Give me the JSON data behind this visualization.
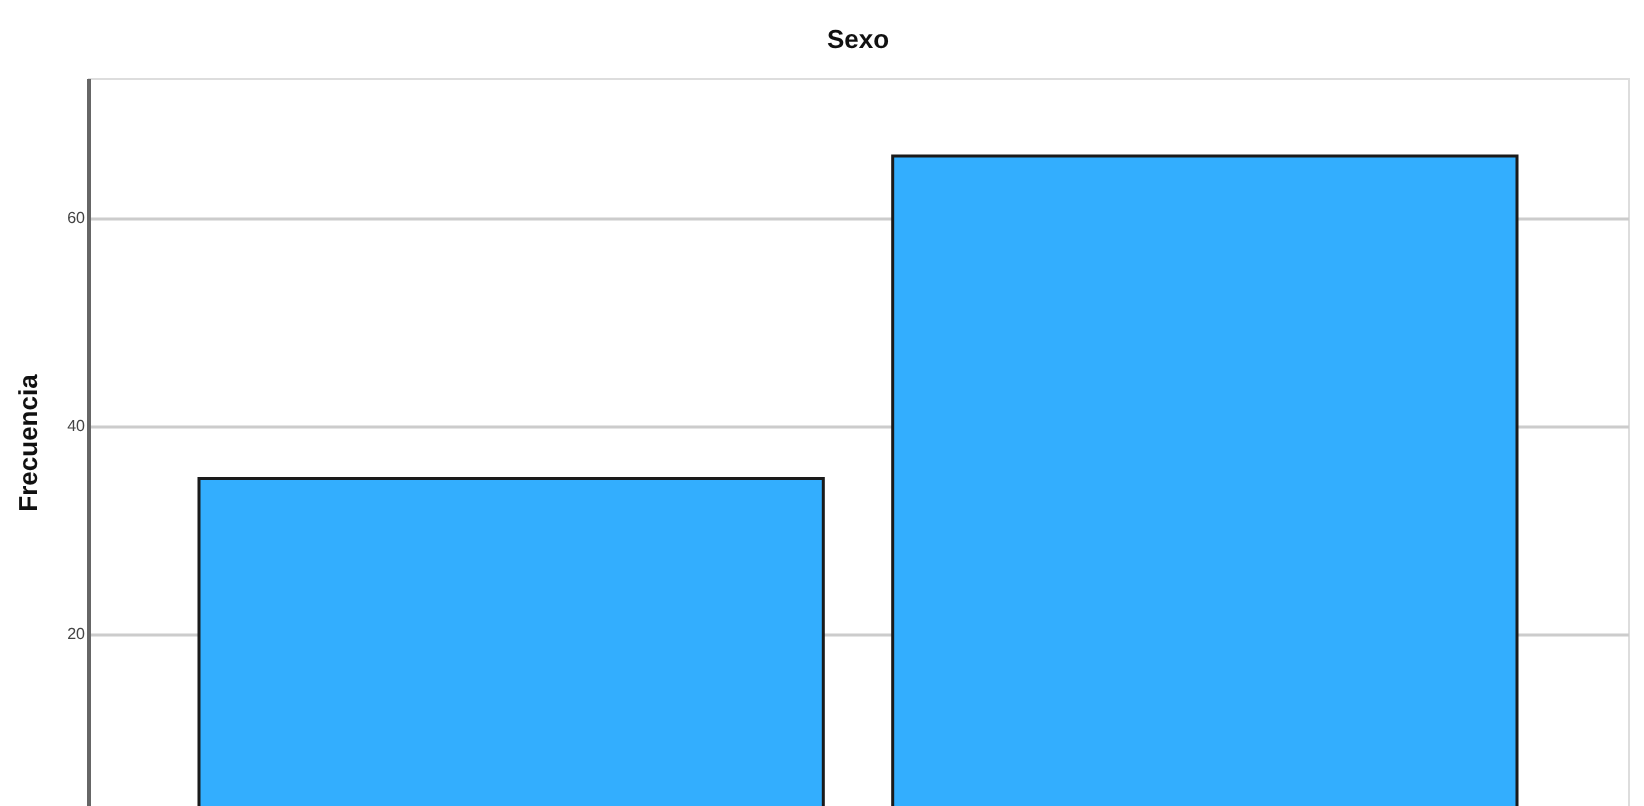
{
  "chart_data": {
    "type": "bar",
    "title": "Sexo",
    "ylabel": "Frecuencia",
    "categories": [
      null,
      null
    ],
    "series": [
      {
        "color": "#33aefe",
        "values": [
          35,
          66
        ]
      }
    ],
    "ylim": [
      3.5,
      73.5
    ],
    "yticks": [
      20,
      40,
      60
    ],
    "grid": "y",
    "legend": false,
    "tick_labels": "y"
  }
}
